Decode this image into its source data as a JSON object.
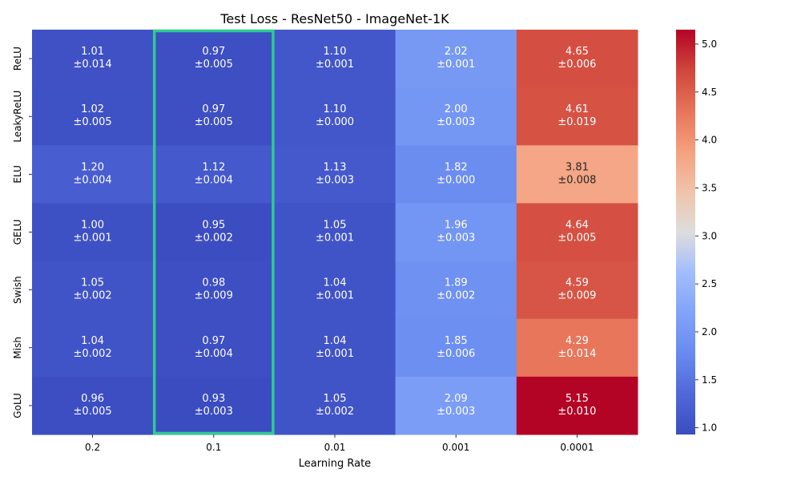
{
  "chart_data": {
    "type": "heatmap",
    "title": "Test Loss - ResNet50 - ImageNet-1K",
    "xlabel": "Learning Rate",
    "ylabel": "",
    "x_categories": [
      "0.2",
      "0.1",
      "0.01",
      "0.001",
      "0.0001"
    ],
    "y_categories": [
      "ReLU",
      "LeakyReLU",
      "ELU",
      "GELU",
      "Swish",
      "Mish",
      "GoLU"
    ],
    "values": [
      [
        1.01,
        0.97,
        1.1,
        2.02,
        4.65
      ],
      [
        1.02,
        0.97,
        1.1,
        2.0,
        4.61
      ],
      [
        1.2,
        1.12,
        1.13,
        1.82,
        3.81
      ],
      [
        1.0,
        0.95,
        1.05,
        1.96,
        4.64
      ],
      [
        1.05,
        0.98,
        1.04,
        1.89,
        4.59
      ],
      [
        1.04,
        0.97,
        1.04,
        1.85,
        4.29
      ],
      [
        0.96,
        0.93,
        1.05,
        2.09,
        5.15
      ]
    ],
    "errors": [
      [
        "±0.014",
        "±0.005",
        "±0.001",
        "±0.001",
        "±0.006"
      ],
      [
        "±0.005",
        "±0.005",
        "±0.000",
        "±0.003",
        "±0.019"
      ],
      [
        "±0.004",
        "±0.004",
        "±0.003",
        "±0.000",
        "±0.008"
      ],
      [
        "±0.001",
        "±0.002",
        "±0.001",
        "±0.003",
        "±0.005"
      ],
      [
        "±0.002",
        "±0.009",
        "±0.001",
        "±0.002",
        "±0.009"
      ],
      [
        "±0.002",
        "±0.004",
        "±0.001",
        "±0.006",
        "±0.014"
      ],
      [
        "±0.005",
        "±0.003",
        "±0.002",
        "±0.003",
        "±0.010"
      ]
    ],
    "value_labels": [
      [
        "1.01",
        "0.97",
        "1.10",
        "2.02",
        "4.65"
      ],
      [
        "1.02",
        "0.97",
        "1.10",
        "2.00",
        "4.61"
      ],
      [
        "1.20",
        "1.12",
        "1.13",
        "1.82",
        "3.81"
      ],
      [
        "1.00",
        "0.95",
        "1.05",
        "1.96",
        "4.64"
      ],
      [
        "1.05",
        "0.98",
        "1.04",
        "1.89",
        "4.59"
      ],
      [
        "1.04",
        "0.97",
        "1.04",
        "1.85",
        "4.29"
      ],
      [
        "0.96",
        "0.93",
        "1.05",
        "2.09",
        "5.15"
      ]
    ],
    "colormap": "coolwarm",
    "color_range": [
      0.93,
      5.15
    ],
    "colorbar_ticks": [
      1.0,
      1.5,
      2.0,
      2.5,
      3.0,
      3.5,
      4.0,
      4.5,
      5.0
    ],
    "colorbar_tick_labels": [
      "1.0",
      "1.5",
      "2.0",
      "2.5",
      "3.0",
      "3.5",
      "4.0",
      "4.5",
      "5.0"
    ],
    "highlight": {
      "column": "0.1",
      "color": "#2ecc8f"
    },
    "grid": false,
    "legend": "colorbar-right"
  }
}
